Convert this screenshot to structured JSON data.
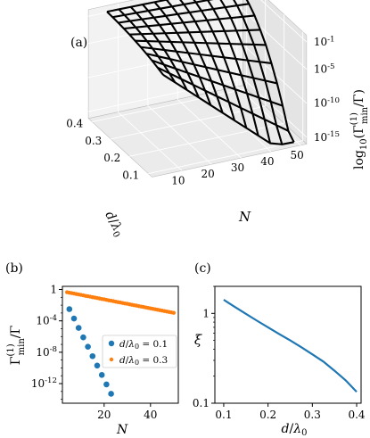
{
  "panel_labels": {
    "a": "(a)",
    "b": "(b)",
    "c": "(c)"
  },
  "colors": {
    "blue": "#1f77b4",
    "orange": "#ff7f0e",
    "wire": "#000000",
    "pane": "#ebebeb"
  },
  "chart_data": [
    {
      "panel": "(a)",
      "type": "surface3d",
      "style": "wireframe",
      "xlabel": "N",
      "ylabel": "d/λ0",
      "zlabel": "log10(Γmin(1)/Γ)",
      "x_ticks": [
        "10",
        "20",
        "30",
        "40",
        "50"
      ],
      "y_ticks": [
        "0.1",
        "0.2",
        "0.3",
        "0.4"
      ],
      "z_ticks": [
        "10^-1",
        "10^-5",
        "10^-10",
        "10^-15"
      ],
      "xlim": [
        0,
        52
      ],
      "ylim": [
        0.08,
        0.42
      ],
      "zlim": [
        -16,
        0
      ],
      "grid": true,
      "N_values": [
        5,
        9,
        13,
        17,
        21,
        25,
        29,
        33,
        37,
        41,
        45,
        49
      ],
      "d_values": [
        0.1,
        0.13,
        0.16,
        0.19,
        0.22,
        0.25,
        0.28,
        0.31,
        0.34,
        0.37,
        0.4
      ],
      "z_log10": [
        [
          -1.95,
          -3.44,
          -4.93,
          -6.42,
          -7.91,
          -9.4,
          -10.89,
          -12.38,
          -13.87,
          -15.36,
          -15.9,
          -15.95
        ],
        [
          -1.64,
          -2.86,
          -4.08,
          -5.3,
          -6.52,
          -7.74,
          -8.96,
          -10.18,
          -11.4,
          -12.62,
          -13.84,
          -15.06
        ],
        [
          -1.36,
          -2.34,
          -3.32,
          -4.3,
          -5.28,
          -6.26,
          -7.24,
          -8.22,
          -9.2,
          -10.18,
          -11.16,
          -12.14
        ],
        [
          -1.12,
          -1.89,
          -2.66,
          -3.43,
          -4.2,
          -4.97,
          -5.74,
          -6.51,
          -7.28,
          -8.05,
          -8.82,
          -9.59
        ],
        [
          -0.91,
          -1.5,
          -2.09,
          -2.68,
          -3.27,
          -3.86,
          -4.45,
          -5.04,
          -5.63,
          -6.22,
          -6.81,
          -7.4
        ],
        [
          -0.74,
          -1.17,
          -1.6,
          -2.03,
          -2.46,
          -2.89,
          -3.32,
          -3.75,
          -4.18,
          -4.61,
          -5.04,
          -5.47
        ],
        [
          -0.59,
          -0.9,
          -1.21,
          -1.52,
          -1.83,
          -2.14,
          -2.45,
          -2.76,
          -3.07,
          -3.38,
          -3.69,
          -4.0
        ],
        [
          -0.47,
          -0.67,
          -0.87,
          -1.07,
          -1.27,
          -1.47,
          -1.67,
          -1.87,
          -2.07,
          -2.27,
          -2.47,
          -2.67
        ],
        [
          -0.38,
          -0.5,
          -0.62,
          -0.74,
          -0.86,
          -0.98,
          -1.1,
          -1.22,
          -1.34,
          -1.46,
          -1.58,
          -1.7
        ],
        [
          -0.32,
          -0.38,
          -0.44,
          -0.5,
          -0.56,
          -0.62,
          -0.68,
          -0.74,
          -0.8,
          -0.86,
          -0.92,
          -0.98
        ],
        [
          -0.28,
          -0.3,
          -0.32,
          -0.34,
          -0.36,
          -0.38,
          -0.4,
          -0.42,
          -0.44,
          -0.46,
          -0.48,
          -0.5
        ]
      ]
    },
    {
      "panel": "(b)",
      "type": "scatter",
      "xlabel": "N",
      "ylabel": "Γmin(1)/Γ",
      "y_scale": "log",
      "xlim": [
        2,
        52
      ],
      "ylim_log10": [
        -14.5,
        0.4
      ],
      "x_ticks": [
        20,
        40
      ],
      "y_ticks": [
        "1",
        "10^-4",
        "10^-8",
        "10^-12"
      ],
      "legend_position": "center-right",
      "series": [
        {
          "name": "d/λ0 = 0.1",
          "color": "#1f77b4",
          "x": [
            5,
            7,
            9,
            11,
            13,
            15,
            17,
            19,
            21,
            23
          ],
          "log10_y": [
            -2.5,
            -3.7,
            -4.9,
            -6.1,
            -7.3,
            -8.5,
            -9.7,
            -10.9,
            -12.1,
            -13.3
          ]
        },
        {
          "name": "d/λ0 = 0.3",
          "color": "#ff7f0e",
          "x": [
            4,
            5,
            6,
            7,
            8,
            9,
            10,
            11,
            12,
            13,
            14,
            15,
            16,
            17,
            18,
            19,
            20,
            21,
            22,
            23,
            24,
            25,
            26,
            27,
            28,
            29,
            30,
            31,
            32,
            33,
            34,
            35,
            36,
            37,
            38,
            39,
            40,
            41,
            42,
            43,
            44,
            45,
            46,
            47,
            48,
            49,
            50
          ],
          "log10_y": [
            -0.35,
            -0.41,
            -0.46,
            -0.52,
            -0.58,
            -0.63,
            -0.69,
            -0.75,
            -0.81,
            -0.86,
            -0.92,
            -0.98,
            -1.03,
            -1.09,
            -1.15,
            -1.21,
            -1.26,
            -1.32,
            -1.38,
            -1.43,
            -1.49,
            -1.55,
            -1.61,
            -1.66,
            -1.72,
            -1.78,
            -1.83,
            -1.89,
            -1.95,
            -2.01,
            -2.06,
            -2.12,
            -2.18,
            -2.23,
            -2.29,
            -2.35,
            -2.41,
            -2.46,
            -2.52,
            -2.58,
            -2.63,
            -2.69,
            -2.75,
            -2.81,
            -2.86,
            -2.92,
            -2.98
          ]
        }
      ]
    },
    {
      "panel": "(c)",
      "type": "line",
      "xlabel": "d/λ0",
      "ylabel": "ξ",
      "y_scale": "log",
      "xlim": [
        0.08,
        0.41
      ],
      "ylim": [
        0.1,
        2
      ],
      "x_ticks": [
        "0.1",
        "0.2",
        "0.3",
        "0.4"
      ],
      "y_ticks": [
        "1",
        "0.1"
      ],
      "color": "#1f77b4",
      "x": [
        0.1,
        0.125,
        0.15,
        0.175,
        0.2,
        0.225,
        0.25,
        0.275,
        0.3,
        0.325,
        0.35,
        0.375,
        0.4
      ],
      "y": [
        1.42,
        1.18,
        0.99,
        0.83,
        0.7,
        0.59,
        0.5,
        0.42,
        0.35,
        0.29,
        0.23,
        0.18,
        0.134
      ]
    }
  ]
}
